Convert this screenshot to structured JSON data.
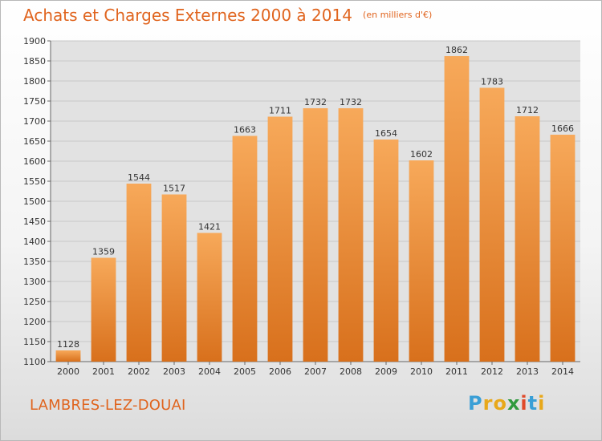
{
  "header": {
    "title": "Achats et Charges Externes 2000 à 2014",
    "unit": "(en milliers d'€)"
  },
  "footer": {
    "place": "LAMBRES-LEZ-DOUAI",
    "brand_letters": [
      "P",
      "r",
      "o",
      "x",
      "i",
      "t",
      "i"
    ],
    "brand_colors": [
      "#3a9fd6",
      "#e8a81a",
      "#e8a81a",
      "#2f9a3e",
      "#e04a2a",
      "#3a9fd6",
      "#e8a81a"
    ]
  },
  "colors": {
    "bar_top": "#f7a95a",
    "bar_bottom": "#d8701c",
    "grid": "#c8c8c8",
    "plot_bg": "#e2e2e2",
    "title": "#e0641e"
  },
  "chart_data": {
    "type": "bar",
    "title": "Achats et Charges Externes 2000 à 2014",
    "ylabel": "(en milliers d'€)",
    "xlabel": "",
    "categories": [
      "2000",
      "2001",
      "2002",
      "2003",
      "2004",
      "2005",
      "2006",
      "2007",
      "2008",
      "2009",
      "2010",
      "2011",
      "2012",
      "2013",
      "2014"
    ],
    "values": [
      1128,
      1359,
      1544,
      1517,
      1421,
      1663,
      1711,
      1732,
      1732,
      1654,
      1602,
      1862,
      1783,
      1712,
      1666
    ],
    "ylim": [
      1100,
      1900
    ],
    "yticks": [
      1100,
      1150,
      1200,
      1250,
      1300,
      1350,
      1400,
      1450,
      1500,
      1550,
      1600,
      1650,
      1700,
      1750,
      1800,
      1850,
      1900
    ],
    "grid": true,
    "data_labels": true
  }
}
